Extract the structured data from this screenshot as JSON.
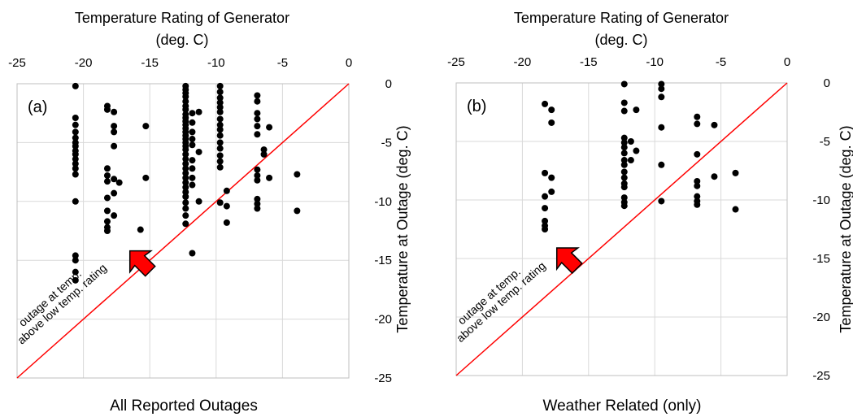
{
  "figure": {
    "top_title_line1": "Temperature  Rating of Generator",
    "top_title_line2": "(deg. C)",
    "right_axis_label": "Temperature  at Outage (deg. C)",
    "annotation_line1": "outage at temp.",
    "annotation_line2": "above  low temp. rating",
    "colors": {
      "points": "#000000",
      "diagonal": "#ff0000",
      "arrow_fill": "#ff0000",
      "arrow_stroke": "#000000",
      "grid": "#d9d9d9"
    }
  },
  "chart_data": [
    {
      "type": "scatter",
      "panel_label": "(a)",
      "caption": "All Reported Outages",
      "x_axis_position": "top",
      "y_axis_position": "right",
      "xlim": [
        -25,
        0
      ],
      "ylim": [
        -25,
        0
      ],
      "x_ticks": [
        -25,
        -20,
        -15,
        -10,
        -5,
        0
      ],
      "y_ticks": [
        0,
        -5,
        -10,
        -15,
        -20,
        -25
      ],
      "grid": true,
      "reference_line": "y = x",
      "arrow_at": [
        -16.5,
        -14.2
      ],
      "points": [
        [
          -20.6,
          -0.2
        ],
        [
          -20.6,
          -2.9
        ],
        [
          -20.6,
          -3.5
        ],
        [
          -20.6,
          -4.1
        ],
        [
          -20.6,
          -4.6
        ],
        [
          -20.6,
          -5.0
        ],
        [
          -20.6,
          -5.3
        ],
        [
          -20.6,
          -5.7
        ],
        [
          -20.6,
          -6.0
        ],
        [
          -20.6,
          -6.4
        ],
        [
          -20.6,
          -6.8
        ],
        [
          -20.6,
          -7.2
        ],
        [
          -20.6,
          -7.7
        ],
        [
          -20.6,
          -10.0
        ],
        [
          -20.6,
          -14.6
        ],
        [
          -20.6,
          -15.0
        ],
        [
          -20.6,
          -16.0
        ],
        [
          -20.6,
          -16.7
        ],
        [
          -18.2,
          -1.9
        ],
        [
          -18.2,
          -2.2
        ],
        [
          -18.2,
          -7.2
        ],
        [
          -18.2,
          -7.8
        ],
        [
          -18.2,
          -8.3
        ],
        [
          -18.2,
          -9.7
        ],
        [
          -18.2,
          -10.8
        ],
        [
          -18.2,
          -11.7
        ],
        [
          -18.2,
          -12.2
        ],
        [
          -18.2,
          -12.5
        ],
        [
          -17.7,
          -2.4
        ],
        [
          -17.7,
          -3.6
        ],
        [
          -17.7,
          -4.1
        ],
        [
          -17.7,
          -5.3
        ],
        [
          -17.7,
          -8.1
        ],
        [
          -17.7,
          -9.3
        ],
        [
          -17.7,
          -11.2
        ],
        [
          -17.3,
          -8.4
        ],
        [
          -15.7,
          -12.4
        ],
        [
          -15.3,
          -3.6
        ],
        [
          -15.3,
          -8.0
        ],
        [
          -15.3,
          -15.8
        ],
        [
          -12.3,
          -0.2
        ],
        [
          -12.3,
          -0.5
        ],
        [
          -12.3,
          -0.8
        ],
        [
          -12.3,
          -1.1
        ],
        [
          -12.3,
          -1.5
        ],
        [
          -12.3,
          -1.9
        ],
        [
          -12.3,
          -2.2
        ],
        [
          -12.3,
          -2.6
        ],
        [
          -12.3,
          -2.9
        ],
        [
          -12.3,
          -3.2
        ],
        [
          -12.3,
          -3.5
        ],
        [
          -12.3,
          -3.8
        ],
        [
          -12.3,
          -4.1
        ],
        [
          -12.3,
          -4.4
        ],
        [
          -12.3,
          -4.7
        ],
        [
          -12.3,
          -5.0
        ],
        [
          -12.3,
          -5.3
        ],
        [
          -12.3,
          -5.6
        ],
        [
          -12.3,
          -6.0
        ],
        [
          -12.3,
          -6.4
        ],
        [
          -12.3,
          -6.8
        ],
        [
          -12.3,
          -7.2
        ],
        [
          -12.3,
          -7.6
        ],
        [
          -12.3,
          -8.0
        ],
        [
          -12.3,
          -8.4
        ],
        [
          -12.3,
          -8.8
        ],
        [
          -12.3,
          -9.2
        ],
        [
          -12.3,
          -9.6
        ],
        [
          -12.3,
          -10.1
        ],
        [
          -12.3,
          -10.6
        ],
        [
          -12.3,
          -11.2
        ],
        [
          -12.3,
          -11.9
        ],
        [
          -11.8,
          -2.5
        ],
        [
          -11.8,
          -3.3
        ],
        [
          -11.8,
          -4.1
        ],
        [
          -11.8,
          -4.7
        ],
        [
          -11.8,
          -5.2
        ],
        [
          -11.8,
          -6.5
        ],
        [
          -11.8,
          -7.2
        ],
        [
          -11.8,
          -8.0
        ],
        [
          -11.8,
          -8.6
        ],
        [
          -11.8,
          -14.4
        ],
        [
          -11.3,
          -2.4
        ],
        [
          -11.3,
          -5.8
        ],
        [
          -11.3,
          -10.0
        ],
        [
          -9.7,
          -0.2
        ],
        [
          -9.7,
          -0.7
        ],
        [
          -9.7,
          -1.2
        ],
        [
          -9.7,
          -1.6
        ],
        [
          -9.7,
          -2.0
        ],
        [
          -9.7,
          -2.4
        ],
        [
          -9.7,
          -3.0
        ],
        [
          -9.7,
          -3.5
        ],
        [
          -9.7,
          -3.9
        ],
        [
          -9.7,
          -4.4
        ],
        [
          -9.7,
          -5.0
        ],
        [
          -9.7,
          -5.5
        ],
        [
          -9.7,
          -6.1
        ],
        [
          -9.7,
          -6.6
        ],
        [
          -9.7,
          -7.1
        ],
        [
          -9.7,
          -10.1
        ],
        [
          -9.2,
          -9.1
        ],
        [
          -9.2,
          -10.4
        ],
        [
          -9.2,
          -11.8
        ],
        [
          -6.9,
          -1.0
        ],
        [
          -6.9,
          -1.5
        ],
        [
          -6.9,
          -2.5
        ],
        [
          -6.9,
          -3.0
        ],
        [
          -6.9,
          -3.6
        ],
        [
          -6.9,
          -4.3
        ],
        [
          -6.9,
          -7.3
        ],
        [
          -6.9,
          -7.8
        ],
        [
          -6.9,
          -8.2
        ],
        [
          -6.9,
          -9.8
        ],
        [
          -6.9,
          -10.2
        ],
        [
          -6.9,
          -10.6
        ],
        [
          -6.4,
          -5.6
        ],
        [
          -6.4,
          -6.0
        ],
        [
          -6.0,
          -3.7
        ],
        [
          -6.0,
          -8.0
        ],
        [
          -3.9,
          -7.7
        ],
        [
          -3.9,
          -10.8
        ]
      ]
    },
    {
      "type": "scatter",
      "panel_label": "(b)",
      "caption": "Weather Related (only)",
      "x_axis_position": "top",
      "y_axis_position": "right",
      "xlim": [
        -25,
        0
      ],
      "ylim": [
        -25,
        0
      ],
      "x_ticks": [
        -25,
        -20,
        -15,
        -10,
        -5,
        0
      ],
      "y_ticks": [
        0,
        -5,
        -10,
        -15,
        -20,
        -25
      ],
      "grid": true,
      "reference_line": "y = x",
      "arrow_at": [
        -17.4,
        -14.1
      ],
      "points": [
        [
          -18.3,
          -1.8
        ],
        [
          -18.3,
          -7.7
        ],
        [
          -18.3,
          -9.7
        ],
        [
          -18.3,
          -10.7
        ],
        [
          -18.3,
          -11.8
        ],
        [
          -18.3,
          -12.2
        ],
        [
          -18.3,
          -12.5
        ],
        [
          -17.8,
          -2.3
        ],
        [
          -17.8,
          -3.4
        ],
        [
          -17.8,
          -8.1
        ],
        [
          -17.8,
          -9.3
        ],
        [
          -12.3,
          -0.1
        ],
        [
          -12.3,
          -1.7
        ],
        [
          -12.3,
          -2.4
        ],
        [
          -12.3,
          -4.7
        ],
        [
          -12.3,
          -5.1
        ],
        [
          -12.3,
          -5.5
        ],
        [
          -12.3,
          -6.0
        ],
        [
          -12.3,
          -6.6
        ],
        [
          -12.3,
          -7.0
        ],
        [
          -12.3,
          -7.6
        ],
        [
          -12.3,
          -8.1
        ],
        [
          -12.3,
          -8.6
        ],
        [
          -12.3,
          -8.9
        ],
        [
          -12.3,
          -9.8
        ],
        [
          -12.3,
          -10.2
        ],
        [
          -12.3,
          -10.5
        ],
        [
          -11.8,
          -5.0
        ],
        [
          -11.8,
          -6.6
        ],
        [
          -11.4,
          -2.3
        ],
        [
          -11.4,
          -5.8
        ],
        [
          -9.5,
          -0.1
        ],
        [
          -9.5,
          -0.5
        ],
        [
          -9.5,
          -1.2
        ],
        [
          -9.5,
          -3.8
        ],
        [
          -9.5,
          -7.0
        ],
        [
          -9.5,
          -10.1
        ],
        [
          -6.8,
          -2.9
        ],
        [
          -6.8,
          -3.5
        ],
        [
          -6.8,
          -6.1
        ],
        [
          -6.8,
          -8.4
        ],
        [
          -6.8,
          -8.8
        ],
        [
          -6.8,
          -9.7
        ],
        [
          -6.8,
          -10.1
        ],
        [
          -6.8,
          -10.4
        ],
        [
          -5.5,
          -3.6
        ],
        [
          -5.5,
          -8.0
        ],
        [
          -3.9,
          -7.7
        ],
        [
          -3.9,
          -10.8
        ]
      ]
    }
  ]
}
